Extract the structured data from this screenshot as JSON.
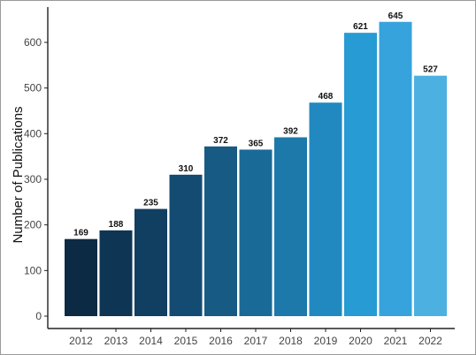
{
  "chart_data": {
    "type": "bar",
    "categories": [
      "2012",
      "2013",
      "2014",
      "2015",
      "2016",
      "2017",
      "2018",
      "2019",
      "2020",
      "2021",
      "2022"
    ],
    "values": [
      169,
      188,
      235,
      310,
      372,
      365,
      392,
      468,
      621,
      645,
      527
    ],
    "data_labels": [
      "169",
      "188",
      "235",
      "310",
      "372",
      "365",
      "392",
      "468",
      "621",
      "645",
      "527"
    ],
    "title": "",
    "xlabel": "",
    "ylabel": "Number of Publications",
    "ylim": [
      0,
      660
    ],
    "yticks": [
      0,
      100,
      200,
      300,
      400,
      500,
      600
    ],
    "ytick_labels": [
      "0",
      "100",
      "200",
      "300",
      "400",
      "500",
      "600"
    ],
    "grid": false,
    "bar_colors": [
      "#0c2a43",
      "#0e3553",
      "#103f62",
      "#134b72",
      "#175a84",
      "#1a6a97",
      "#1d79aa",
      "#2189c0",
      "#279bd4",
      "#36a3dc",
      "#4cb1e1"
    ]
  }
}
